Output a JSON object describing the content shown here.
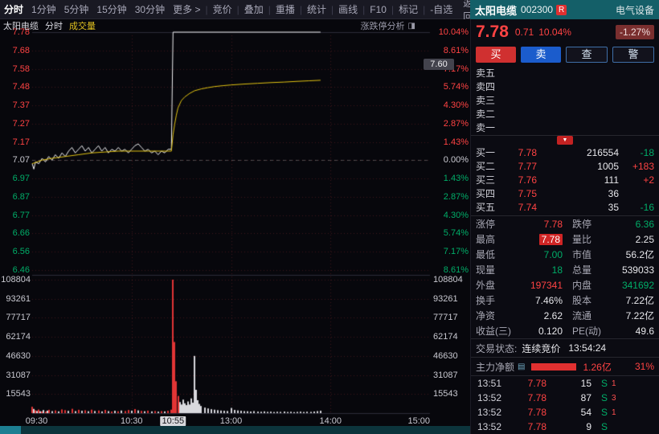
{
  "icons": {
    "panel_toggle": "◨",
    "expand_down": "▼",
    "list": "▤"
  },
  "toolbar": {
    "tabs": [
      {
        "label": "分时",
        "active": true
      },
      {
        "label": "1分钟"
      },
      {
        "label": "5分钟"
      },
      {
        "label": "15分钟"
      },
      {
        "label": "30分钟"
      },
      {
        "label": "更多 >"
      }
    ],
    "buttons": [
      "竞价",
      "叠加",
      "重播",
      "统计",
      "画线",
      "F10",
      "标记",
      "-自选"
    ],
    "back_label": "返回"
  },
  "chart": {
    "title_stock": "太阳电缆",
    "title_period": "分时",
    "title_volume": "成交量",
    "analysis_label": "涨跌停分析",
    "crosshair_price": "7.60",
    "price_axis": [
      {
        "v": "7.78",
        "c": "up"
      },
      {
        "v": "7.68",
        "c": "up"
      },
      {
        "v": "7.58",
        "c": "up"
      },
      {
        "v": "7.48",
        "c": "up"
      },
      {
        "v": "7.37",
        "c": "up"
      },
      {
        "v": "7.27",
        "c": "up"
      },
      {
        "v": "7.17",
        "c": "up"
      },
      {
        "v": "7.07",
        "c": "flat"
      },
      {
        "v": "6.97",
        "c": "down"
      },
      {
        "v": "6.87",
        "c": "down"
      },
      {
        "v": "6.77",
        "c": "down"
      },
      {
        "v": "6.66",
        "c": "down"
      },
      {
        "v": "6.56",
        "c": "down"
      },
      {
        "v": "6.46",
        "c": "down"
      }
    ],
    "pct_axis": [
      {
        "v": "10.04%",
        "c": "up"
      },
      {
        "v": "8.61%",
        "c": "up"
      },
      {
        "v": "7.17%",
        "c": "up"
      },
      {
        "v": "5.74%",
        "c": "up"
      },
      {
        "v": "4.30%",
        "c": "up"
      },
      {
        "v": "2.87%",
        "c": "up"
      },
      {
        "v": "1.43%",
        "c": "up"
      },
      {
        "v": "0.00%",
        "c": "flat"
      },
      {
        "v": "1.43%",
        "c": "down"
      },
      {
        "v": "2.87%",
        "c": "down"
      },
      {
        "v": "4.30%",
        "c": "down"
      },
      {
        "v": "5.74%",
        "c": "down"
      },
      {
        "v": "7.17%",
        "c": "down"
      },
      {
        "v": "8.61%",
        "c": "down"
      }
    ],
    "vol_axis": [
      "108804",
      "93261",
      "77717",
      "62174",
      "46630",
      "31087",
      "15543"
    ],
    "time_axis": [
      {
        "label": "09:30",
        "minute": 0,
        "align": "left"
      },
      {
        "label": "10:30",
        "minute": 60
      },
      {
        "label": "10:55",
        "minute": 85,
        "boxed": true
      },
      {
        "label": "13:00",
        "minute": 120
      },
      {
        "label": "14:00",
        "minute": 180
      },
      {
        "label": "15:00",
        "minute": 240,
        "align": "right"
      }
    ]
  },
  "chart_data": {
    "type": "line",
    "title": "太阳电缆 分时",
    "total_minutes": 240,
    "prev_close": 7.07,
    "price_range": [
      6.46,
      7.78
    ],
    "volume_max": 108804,
    "grid_vertical_minutes": [
      60,
      120,
      180
    ],
    "series": [
      {
        "name": "price",
        "color": "#f0f0f2",
        "points": [
          [
            0,
            7.05
          ],
          [
            1,
            7.02
          ],
          [
            2,
            7.06
          ],
          [
            4,
            7.05
          ],
          [
            6,
            7.08
          ],
          [
            8,
            7.06
          ],
          [
            10,
            7.09
          ],
          [
            12,
            7.07
          ],
          [
            14,
            7.1
          ],
          [
            16,
            7.08
          ],
          [
            18,
            7.11
          ],
          [
            20,
            7.09
          ],
          [
            22,
            7.12
          ],
          [
            24,
            7.14
          ],
          [
            26,
            7.11
          ],
          [
            28,
            7.13
          ],
          [
            30,
            7.15
          ],
          [
            32,
            7.12
          ],
          [
            34,
            7.14
          ],
          [
            36,
            7.11
          ],
          [
            38,
            7.13
          ],
          [
            40,
            7.15
          ],
          [
            42,
            7.12
          ],
          [
            44,
            7.14
          ],
          [
            46,
            7.11
          ],
          [
            48,
            7.13
          ],
          [
            50,
            7.12
          ],
          [
            52,
            7.14
          ],
          [
            54,
            7.12
          ],
          [
            56,
            7.13
          ],
          [
            58,
            7.11
          ],
          [
            60,
            7.13
          ],
          [
            62,
            7.15
          ],
          [
            64,
            7.16
          ],
          [
            66,
            7.14
          ],
          [
            68,
            7.12
          ],
          [
            70,
            7.13
          ],
          [
            72,
            7.11
          ],
          [
            74,
            7.12
          ],
          [
            76,
            7.1
          ],
          [
            78,
            7.12
          ],
          [
            80,
            7.11
          ],
          [
            82,
            7.13
          ],
          [
            84,
            7.13
          ],
          [
            85,
            7.78
          ],
          [
            174,
            7.78
          ]
        ]
      },
      {
        "name": "avg_price",
        "color": "#e3c413",
        "points": [
          [
            0,
            7.05
          ],
          [
            6,
            7.07
          ],
          [
            12,
            7.08
          ],
          [
            20,
            7.09
          ],
          [
            28,
            7.1
          ],
          [
            36,
            7.11
          ],
          [
            44,
            7.115
          ],
          [
            52,
            7.12
          ],
          [
            60,
            7.12
          ],
          [
            70,
            7.12
          ],
          [
            80,
            7.12
          ],
          [
            84,
            7.12
          ],
          [
            85,
            7.21
          ],
          [
            86,
            7.27
          ],
          [
            87,
            7.32
          ],
          [
            88,
            7.36
          ],
          [
            90,
            7.4
          ],
          [
            92,
            7.42
          ],
          [
            95,
            7.44
          ],
          [
            98,
            7.455
          ],
          [
            102,
            7.465
          ],
          [
            106,
            7.472
          ],
          [
            110,
            7.478
          ],
          [
            115,
            7.483
          ],
          [
            120,
            7.487
          ],
          [
            128,
            7.492
          ],
          [
            136,
            7.496
          ],
          [
            144,
            7.5
          ],
          [
            152,
            7.503
          ],
          [
            160,
            7.507
          ],
          [
            167,
            7.51
          ],
          [
            174,
            7.513
          ]
        ]
      }
    ],
    "volume_bars": [
      [
        0,
        5200,
        "r"
      ],
      [
        1,
        3400,
        "w"
      ],
      [
        2,
        2300,
        "r"
      ],
      [
        3,
        1700,
        "w"
      ],
      [
        4,
        2900,
        "r"
      ],
      [
        5,
        1500,
        "w"
      ],
      [
        6,
        1300,
        "r"
      ],
      [
        7,
        2500,
        "w"
      ],
      [
        8,
        1200,
        "r"
      ],
      [
        9,
        2000,
        "w"
      ],
      [
        10,
        2700,
        "r"
      ],
      [
        12,
        1600,
        "w"
      ],
      [
        14,
        2200,
        "r"
      ],
      [
        16,
        1400,
        "w"
      ],
      [
        18,
        3000,
        "r"
      ],
      [
        20,
        2400,
        "r"
      ],
      [
        22,
        1800,
        "w"
      ],
      [
        24,
        3500,
        "r"
      ],
      [
        26,
        1600,
        "w"
      ],
      [
        28,
        2700,
        "r"
      ],
      [
        30,
        1900,
        "w"
      ],
      [
        32,
        2300,
        "r"
      ],
      [
        34,
        1500,
        "w"
      ],
      [
        36,
        2800,
        "r"
      ],
      [
        38,
        1700,
        "w"
      ],
      [
        40,
        2100,
        "r"
      ],
      [
        42,
        1400,
        "w"
      ],
      [
        44,
        2600,
        "r"
      ],
      [
        46,
        1600,
        "w"
      ],
      [
        48,
        1300,
        "r"
      ],
      [
        50,
        1900,
        "w"
      ],
      [
        52,
        1500,
        "r"
      ],
      [
        54,
        2100,
        "w"
      ],
      [
        56,
        1700,
        "r"
      ],
      [
        58,
        2500,
        "r"
      ],
      [
        60,
        2000,
        "w"
      ],
      [
        62,
        3300,
        "r"
      ],
      [
        64,
        2200,
        "w"
      ],
      [
        66,
        1800,
        "r"
      ],
      [
        68,
        1500,
        "w"
      ],
      [
        70,
        2000,
        "r"
      ],
      [
        72,
        1400,
        "w"
      ],
      [
        74,
        1700,
        "r"
      ],
      [
        76,
        1200,
        "w"
      ],
      [
        78,
        1600,
        "r"
      ],
      [
        80,
        1400,
        "w"
      ],
      [
        82,
        1900,
        "r"
      ],
      [
        84,
        2800,
        "r"
      ],
      [
        85,
        108804,
        "r"
      ],
      [
        86,
        58000,
        "r"
      ],
      [
        87,
        26000,
        "r"
      ],
      [
        88,
        14000,
        "r"
      ],
      [
        89,
        9000,
        "w"
      ],
      [
        90,
        7000,
        "w"
      ],
      [
        91,
        11000,
        "w"
      ],
      [
        92,
        8000,
        "w"
      ],
      [
        93,
        6500,
        "w"
      ],
      [
        94,
        9500,
        "w"
      ],
      [
        95,
        7000,
        "w"
      ],
      [
        96,
        12000,
        "w"
      ],
      [
        97,
        8500,
        "w"
      ],
      [
        98,
        46630,
        "w"
      ],
      [
        99,
        19000,
        "w"
      ],
      [
        100,
        10500,
        "w"
      ],
      [
        101,
        7500,
        "w"
      ],
      [
        102,
        5800,
        "w"
      ],
      [
        104,
        4500,
        "w"
      ],
      [
        106,
        3800,
        "w"
      ],
      [
        108,
        3200,
        "w"
      ],
      [
        110,
        2800,
        "w"
      ],
      [
        112,
        2400,
        "w"
      ],
      [
        114,
        2100,
        "w"
      ],
      [
        116,
        1900,
        "w"
      ],
      [
        118,
        1700,
        "w"
      ],
      [
        120,
        4200,
        "w"
      ],
      [
        122,
        2600,
        "w"
      ],
      [
        124,
        2200,
        "w"
      ],
      [
        126,
        1900,
        "w"
      ],
      [
        128,
        1600,
        "w"
      ],
      [
        130,
        1500,
        "w"
      ],
      [
        132,
        1300,
        "w"
      ],
      [
        134,
        1600,
        "w"
      ],
      [
        136,
        1200,
        "w"
      ],
      [
        138,
        1100,
        "w"
      ],
      [
        140,
        1400,
        "w"
      ],
      [
        142,
        1000,
        "w"
      ],
      [
        144,
        1200,
        "w"
      ],
      [
        146,
        900,
        "w"
      ],
      [
        148,
        1100,
        "w"
      ],
      [
        150,
        1000,
        "w"
      ],
      [
        152,
        1300,
        "w"
      ],
      [
        154,
        900,
        "w"
      ],
      [
        156,
        1100,
        "w"
      ],
      [
        158,
        800,
        "w"
      ],
      [
        160,
        1000,
        "w"
      ],
      [
        162,
        1200,
        "w"
      ],
      [
        164,
        900,
        "w"
      ],
      [
        166,
        1100,
        "w"
      ],
      [
        168,
        1000,
        "w"
      ],
      [
        170,
        1300,
        "w"
      ],
      [
        172,
        1600,
        "w"
      ],
      [
        174,
        1900,
        "w"
      ]
    ]
  },
  "panel": {
    "header": {
      "name": "太阳电缆",
      "code": "002300",
      "flag": "R",
      "sector": "电气设备"
    },
    "quote": {
      "price": "7.78",
      "change": "0.71",
      "pct": "10.04%",
      "sector_pct": "-1.27%"
    },
    "actions": [
      {
        "label": "买",
        "style": "buy"
      },
      {
        "label": "卖",
        "style": "sell"
      },
      {
        "label": "查",
        "style": "ghost"
      },
      {
        "label": "警",
        "style": "ghost"
      }
    ],
    "asks": [
      {
        "label": "卖五",
        "price": "",
        "vol": "",
        "delta": "",
        "dc": ""
      },
      {
        "label": "卖四",
        "price": "",
        "vol": "",
        "delta": "",
        "dc": ""
      },
      {
        "label": "卖三",
        "price": "",
        "vol": "",
        "delta": "",
        "dc": ""
      },
      {
        "label": "卖二",
        "price": "",
        "vol": "",
        "delta": "",
        "dc": ""
      },
      {
        "label": "卖一",
        "price": "",
        "vol": "",
        "delta": "",
        "dc": ""
      }
    ],
    "bids": [
      {
        "label": "买一",
        "price": "7.78",
        "pc": "up",
        "vol": "216554",
        "delta": "-18",
        "dc": "down"
      },
      {
        "label": "买二",
        "price": "7.77",
        "pc": "up",
        "vol": "1005",
        "delta": "+183",
        "dc": "up"
      },
      {
        "label": "买三",
        "price": "7.76",
        "pc": "up",
        "vol": "111",
        "delta": "+2",
        "dc": "up"
      },
      {
        "label": "买四",
        "price": "7.75",
        "pc": "up",
        "vol": "36",
        "delta": "",
        "dc": ""
      },
      {
        "label": "买五",
        "price": "7.74",
        "pc": "up",
        "vol": "35",
        "delta": "-16",
        "dc": "down"
      }
    ],
    "stats": [
      {
        "l1": "涨停",
        "v1": "7.78",
        "c1": "up",
        "l2": "跌停",
        "v2": "6.36",
        "c2": "down"
      },
      {
        "l1": "最高",
        "v1": "7.78",
        "c1": "hl",
        "l2": "量比",
        "v2": "2.25",
        "c2": "flat"
      },
      {
        "l1": "最低",
        "v1": "7.00",
        "c1": "down",
        "l2": "市值",
        "v2": "56.2亿",
        "c2": "flat"
      },
      {
        "l1": "现量",
        "v1": "18",
        "c1": "down",
        "l2": "总量",
        "v2": "539033",
        "c2": "flat"
      },
      {
        "l1": "外盘",
        "v1": "197341",
        "c1": "up",
        "l2": "内盘",
        "v2": "341692",
        "c2": "down"
      },
      {
        "l1": "换手",
        "v1": "7.46%",
        "c1": "flat",
        "l2": "股本",
        "v2": "7.22亿",
        "c2": "flat"
      },
      {
        "l1": "净资",
        "v1": "2.62",
        "c1": "flat",
        "l2": "流通",
        "v2": "7.22亿",
        "c2": "flat"
      },
      {
        "l1": "收益(三)",
        "v1": "0.120",
        "c1": "flat",
        "l2": "PE(动)",
        "v2": "49.6",
        "c2": "flat"
      }
    ],
    "status": {
      "label": "交易状态:",
      "value": "连续竞价",
      "time": "13:54:24"
    },
    "main_flow": {
      "label": "主力净额",
      "value": "1.26亿",
      "pct": "31%"
    },
    "ticks": [
      {
        "time": "13:51",
        "price": "7.78",
        "vol": "15",
        "side": "S",
        "count": "1"
      },
      {
        "time": "13:52",
        "price": "7.78",
        "vol": "87",
        "side": "S",
        "count": "3"
      },
      {
        "time": "13:52",
        "price": "7.78",
        "vol": "54",
        "side": "S",
        "count": "1"
      },
      {
        "time": "13:52",
        "price": "7.78",
        "vol": "9",
        "side": "S",
        "count": ""
      }
    ]
  }
}
